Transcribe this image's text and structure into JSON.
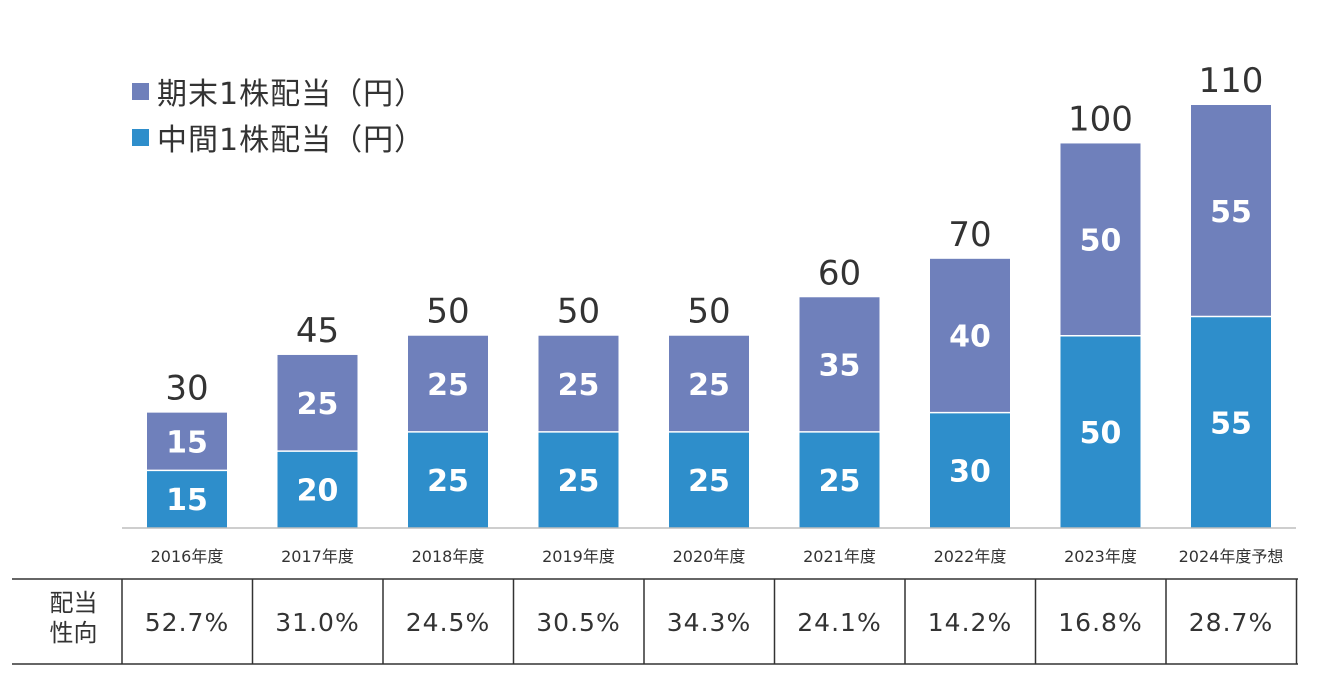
{
  "chart_data": {
    "type": "bar",
    "stacked": true,
    "categories": [
      "2016年度",
      "2017年度",
      "2018年度",
      "2019年度",
      "2020年度",
      "2021年度",
      "2022年度",
      "2023年度",
      "2024年度予想"
    ],
    "series": [
      {
        "name": "中間1株配当（円）",
        "values": [
          15,
          20,
          25,
          25,
          25,
          25,
          30,
          50,
          55
        ],
        "color": "#2e8ecb"
      },
      {
        "name": "期末1株配当（円）",
        "values": [
          15,
          25,
          25,
          25,
          25,
          35,
          40,
          50,
          55
        ],
        "color": "#6f80bb"
      }
    ],
    "totals": [
      30,
      45,
      50,
      50,
      50,
      60,
      70,
      100,
      110
    ],
    "ylim": [
      0,
      110
    ],
    "legend_position": "top-left",
    "grid": false,
    "title": "",
    "xlabel": "",
    "ylabel": ""
  },
  "legend": {
    "items": [
      {
        "label": "期末1株配当（円）",
        "color": "#6f80bb"
      },
      {
        "label": "中間1株配当（円）",
        "color": "#2e8ecb"
      }
    ]
  },
  "payout_table": {
    "header_line1": "配当",
    "header_line2": "性向",
    "values": [
      "52.7%",
      "31.0%",
      "24.5%",
      "30.5%",
      "34.3%",
      "24.1%",
      "14.2%",
      "16.8%",
      "28.7%"
    ]
  }
}
